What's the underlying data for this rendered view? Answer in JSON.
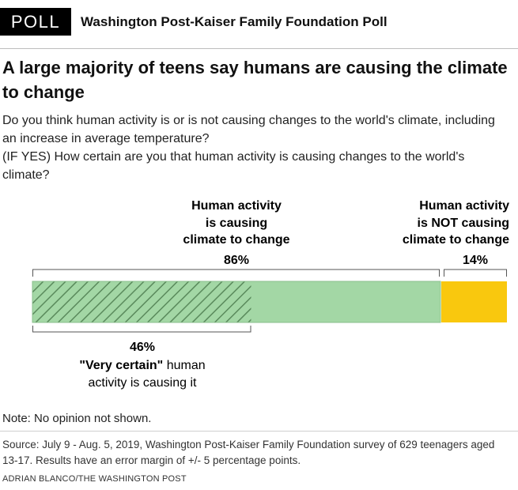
{
  "header": {
    "badge": "POLL",
    "title": "Washington Post-Kaiser Family Foundation Poll"
  },
  "headline": "A large majority of teens say humans are causing the climate to change",
  "questions": [
    "Do you think human activity is or is not causing changes to the world's climate, including an increase in average temperature?",
    "(IF YES) How certain are you that human activity is causing changes to the world's climate?"
  ],
  "chart_data": {
    "type": "bar",
    "orientation": "horizontal-stacked",
    "segments": [
      {
        "label_lines": [
          "Human activity",
          "is causing",
          "climate to change"
        ],
        "value": 86,
        "value_label": "86%",
        "color": "#a3d7a5"
      },
      {
        "label_lines": [
          "Human activity",
          "is NOT causing",
          "climate to change"
        ],
        "value": 14,
        "value_label": "14%",
        "color": "#f9c80e"
      }
    ],
    "subsegment": {
      "value": 46,
      "value_label": "46%",
      "bold_text": "\"Very certain\"",
      "text_rest": " human",
      "text_line2": "activity is causing it",
      "pattern": "diagonal-hatch",
      "hatch_color": "#5a8a5c"
    },
    "xlim": [
      0,
      100
    ]
  },
  "note": "Note: No opinion not shown.",
  "source": "Source: July 9 - Aug. 5, 2019, Washington Post-Kaiser Family Foundation survey of 629 teenagers aged 13-17. Results have an error margin of +/- 5 percentage points.",
  "credit": "ADRIAN BLANCO/THE WASHINGTON POST"
}
